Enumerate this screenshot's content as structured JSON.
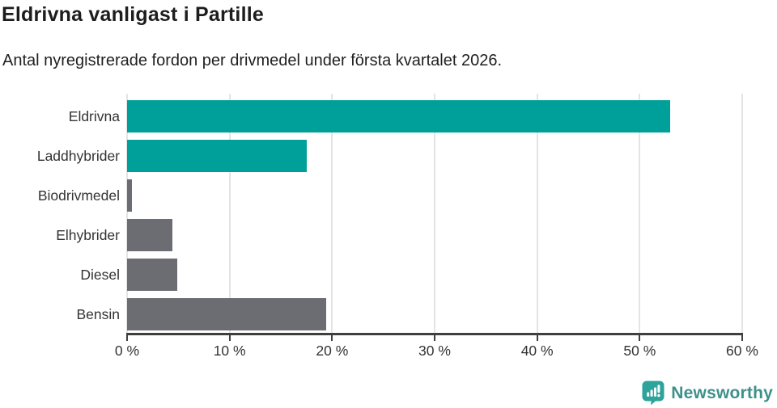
{
  "header": {
    "title": "Eldrivna vanligast i Partille",
    "subtitle": "Antal nyregistrerade fordon per drivmedel under första kvartalet 2026."
  },
  "chart_data": {
    "type": "bar",
    "orientation": "horizontal",
    "title": "Eldrivna vanligast i Partille",
    "subtitle": "Antal nyregistrerade fordon per drivmedel under första kvartalet 2026.",
    "categories": [
      "Eldrivna",
      "Laddhybrider",
      "Biodrivmedel",
      "Elhybrider",
      "Diesel",
      "Bensin"
    ],
    "values": [
      53,
      17.5,
      0.5,
      4.4,
      4.9,
      19.4
    ],
    "unit": "%",
    "bar_colors": [
      "#00a09a",
      "#00a09a",
      "#6c6c73",
      "#6c6c73",
      "#6c6c73",
      "#6c6c73"
    ],
    "xlim": [
      0,
      60
    ],
    "x_tick_values": [
      0,
      10,
      20,
      30,
      40,
      50,
      60
    ],
    "x_tick_labels": [
      "0 %",
      "10 %",
      "20 %",
      "30 %",
      "40 %",
      "50 %",
      "60 %"
    ],
    "grid": "vertical",
    "legend": "none"
  },
  "colors": {
    "accent_teal": "#00a09a",
    "bar_gray": "#6c6c73",
    "gridline": "#e4e4e4",
    "axis": "#3f3f3f",
    "text_dark": "#1d1d1d",
    "label_gray": "#333333",
    "logo_icon_teal": "#2ea39c",
    "logo_text_teal": "#3e908b"
  },
  "footer": {
    "brand": "Newsworthy",
    "logo_icon": "bar-chart-speech-bubble"
  }
}
